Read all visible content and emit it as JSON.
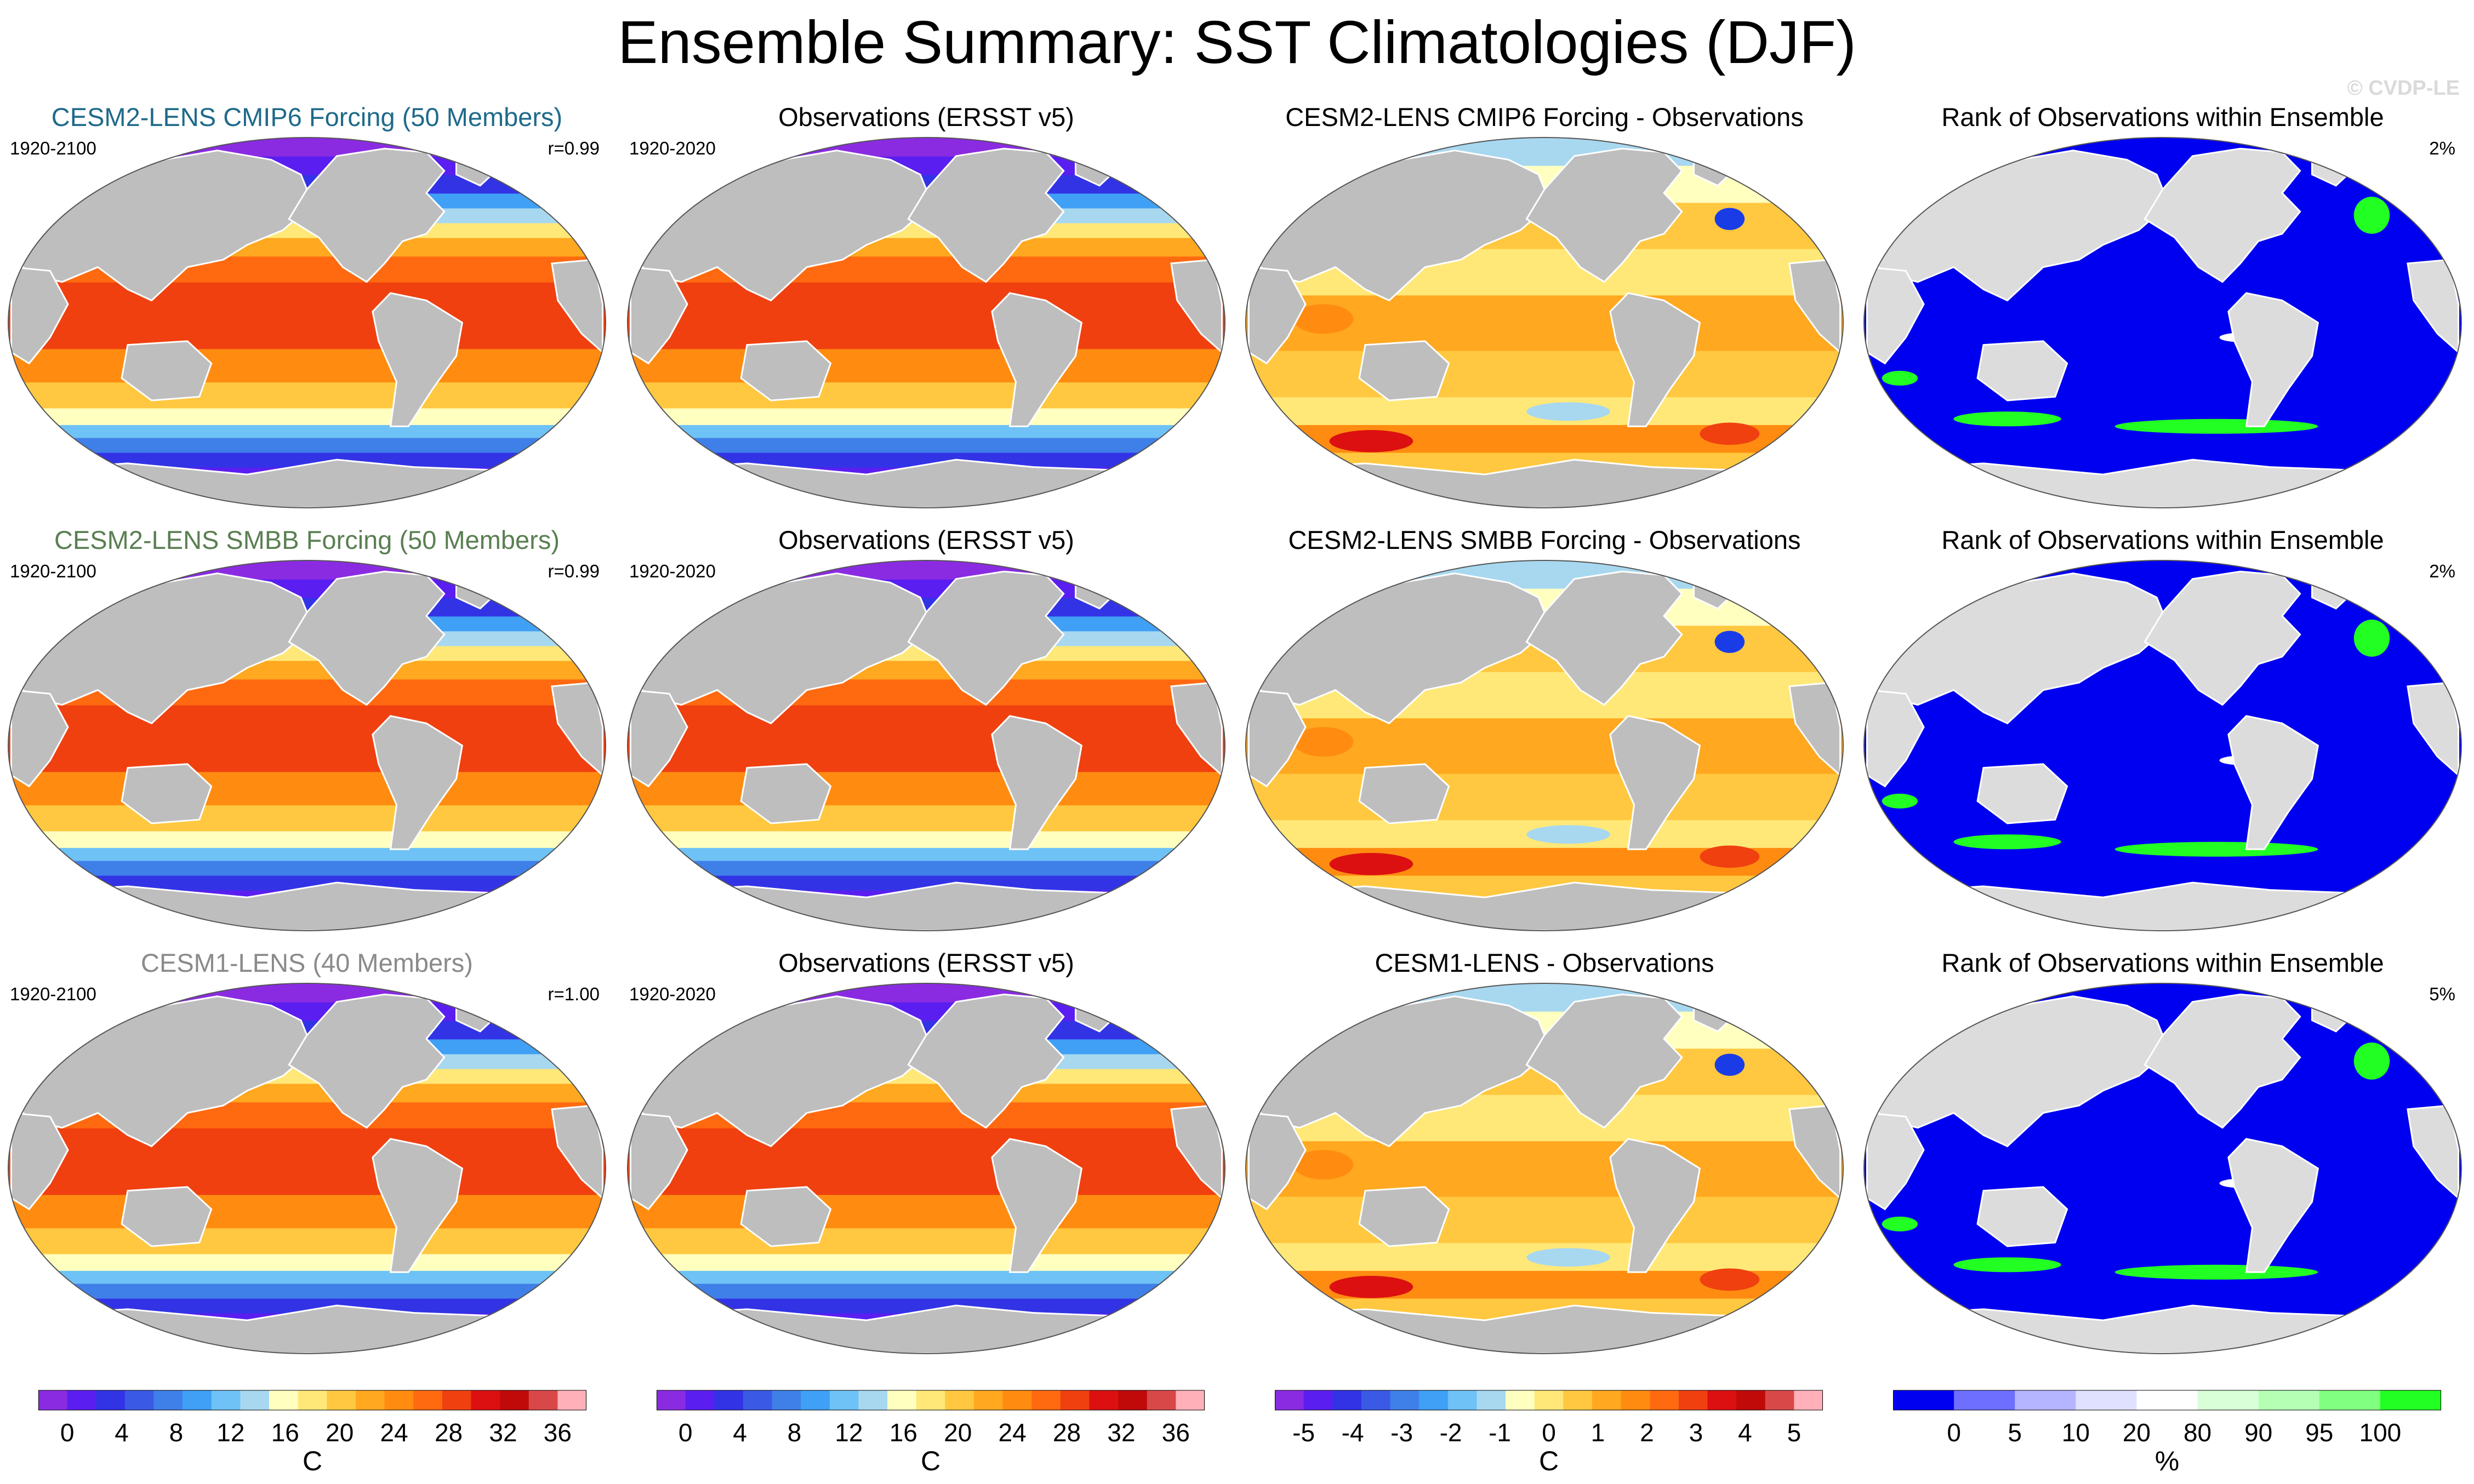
{
  "title": "Ensemble Summary: SST Climatologies (DJF)",
  "credit": "© CVDP-LE",
  "colors": {
    "land": "#bebebe",
    "rank_land": "#dcdcdc",
    "rank_ocean": "#0000f0",
    "rank_highlight": "#22ff22"
  },
  "rows": [
    {
      "panels": [
        {
          "kind": "sst",
          "title": "CESM2-LENS CMIP6 Forcing (50 Members)",
          "title_color": "#1f6a8a",
          "left": "1920-2100",
          "right": "r=0.99"
        },
        {
          "kind": "sst",
          "title": "Observations (ERSST v5)",
          "title_color": "#000000",
          "left": "1920-2020",
          "right": ""
        },
        {
          "kind": "diff",
          "title": "CESM2-LENS CMIP6 Forcing - Observations",
          "title_color": "#000000",
          "left": "",
          "right": ""
        },
        {
          "kind": "rank",
          "title": "Rank of Observations within Ensemble",
          "title_color": "#000000",
          "left": "",
          "right": "2%"
        }
      ]
    },
    {
      "panels": [
        {
          "kind": "sst",
          "title": "CESM2-LENS SMBB Forcing (50 Members)",
          "title_color": "#5a7f52",
          "left": "1920-2100",
          "right": "r=0.99"
        },
        {
          "kind": "sst",
          "title": "Observations (ERSST v5)",
          "title_color": "#000000",
          "left": "1920-2020",
          "right": ""
        },
        {
          "kind": "diff",
          "title": "CESM2-LENS SMBB Forcing - Observations",
          "title_color": "#000000",
          "left": "",
          "right": ""
        },
        {
          "kind": "rank",
          "title": "Rank of Observations within Ensemble",
          "title_color": "#000000",
          "left": "",
          "right": "2%"
        }
      ]
    },
    {
      "panels": [
        {
          "kind": "sst",
          "title": "CESM1-LENS (40 Members)",
          "title_color": "#8a8a8a",
          "left": "1920-2100",
          "right": "r=1.00"
        },
        {
          "kind": "sst",
          "title": "Observations (ERSST v5)",
          "title_color": "#000000",
          "left": "1920-2020",
          "right": ""
        },
        {
          "kind": "diff",
          "title": "CESM1-LENS - Observations",
          "title_color": "#000000",
          "left": "",
          "right": ""
        },
        {
          "kind": "rank",
          "title": "Rank of Observations within Ensemble",
          "title_color": "#000000",
          "left": "",
          "right": "5%"
        }
      ]
    }
  ],
  "colorbars": [
    {
      "kind": "sst",
      "unit": "C",
      "ticks": [
        "0",
        "4",
        "8",
        "12",
        "16",
        "20",
        "24",
        "28",
        "32",
        "36"
      ],
      "colors": [
        "#8a2be2",
        "#5a1ef0",
        "#3333e6",
        "#3a5ae6",
        "#3f7fe8",
        "#3fa0f5",
        "#6ec2f5",
        "#a8d8f0",
        "#ffffc0",
        "#ffe878",
        "#ffc840",
        "#ffa820",
        "#ff8c10",
        "#ff6a10",
        "#f04010",
        "#dc1010",
        "#c00a0a",
        "#d84848",
        "#ffb0b8"
      ]
    },
    {
      "kind": "sst",
      "unit": "C",
      "ticks": [
        "0",
        "4",
        "8",
        "12",
        "16",
        "20",
        "24",
        "28",
        "32",
        "36"
      ],
      "colors": [
        "#8a2be2",
        "#5a1ef0",
        "#3333e6",
        "#3a5ae6",
        "#3f7fe8",
        "#3fa0f5",
        "#6ec2f5",
        "#a8d8f0",
        "#ffffc0",
        "#ffe878",
        "#ffc840",
        "#ffa820",
        "#ff8c10",
        "#ff6a10",
        "#f04010",
        "#dc1010",
        "#c00a0a",
        "#d84848",
        "#ffb0b8"
      ]
    },
    {
      "kind": "diff",
      "unit": "C",
      "ticks": [
        "-5",
        "-4",
        "-3",
        "-2",
        "-1",
        "0",
        "1",
        "2",
        "3",
        "4",
        "5"
      ],
      "colors": [
        "#8a2be2",
        "#5a1ef0",
        "#3333e6",
        "#3a5ae6",
        "#3f7fe8",
        "#3fa0f5",
        "#6ec2f5",
        "#a8d8f0",
        "#ffffc0",
        "#ffe878",
        "#ffc840",
        "#ffa820",
        "#ff8c10",
        "#ff6a10",
        "#f04010",
        "#dc1010",
        "#c00a0a",
        "#d84848",
        "#ffb0b8"
      ]
    },
    {
      "kind": "rank",
      "unit": "%",
      "ticks": [
        "0",
        "5",
        "10",
        "20",
        "80",
        "90",
        "95",
        "100"
      ],
      "colors": [
        "#0000f0",
        "#6e6eff",
        "#b4b4ff",
        "#e0e0ff",
        "#ffffff",
        "#d8ffd8",
        "#b4ffb4",
        "#80ff80",
        "#22ff22"
      ]
    }
  ]
}
